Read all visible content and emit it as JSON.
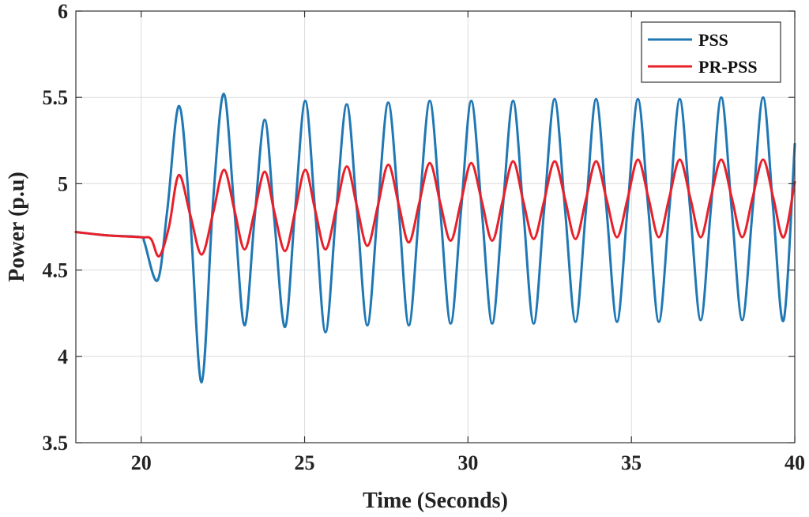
{
  "chart_data": {
    "type": "line",
    "xlabel": "Time (Seconds)",
    "ylabel": "Power (p.u)",
    "xlim": [
      18,
      40
    ],
    "ylim": [
      3.5,
      6
    ],
    "xticks": [
      20,
      25,
      30,
      35,
      40
    ],
    "yticks": [
      3.5,
      4,
      4.5,
      5,
      5.5,
      6
    ],
    "grid": true,
    "legend_position": "top-right",
    "series": [
      {
        "name": "PSS",
        "color": "#1f77b4",
        "x": [
          18.0,
          19.0,
          20.0,
          20.1,
          20.5,
          20.8,
          21.16,
          21.5,
          21.85,
          22.2,
          22.53,
          22.85,
          23.16,
          23.47,
          23.78,
          24.07,
          24.4,
          24.71,
          25.02,
          25.32,
          25.64,
          25.97,
          26.29,
          26.6,
          26.92,
          27.24,
          27.56,
          27.88,
          28.19,
          28.51,
          28.83,
          29.15,
          29.47,
          29.79,
          30.1,
          30.42,
          30.74,
          31.06,
          31.38,
          31.69,
          32.01,
          32.33,
          32.65,
          32.97,
          33.29,
          33.61,
          33.92,
          34.24,
          34.56,
          34.88,
          35.2,
          35.52,
          35.84,
          36.16,
          36.48,
          36.8,
          37.12,
          37.43,
          37.75,
          38.07,
          38.39,
          38.71,
          39.03,
          39.34,
          39.66,
          40.0
        ],
        "y": [
          4.72,
          4.7,
          4.69,
          4.66,
          4.44,
          4.85,
          5.45,
          4.8,
          3.85,
          4.9,
          5.52,
          4.85,
          4.18,
          4.8,
          5.37,
          4.8,
          4.17,
          4.85,
          5.48,
          4.85,
          4.14,
          4.85,
          5.46,
          4.85,
          4.18,
          4.85,
          5.47,
          4.85,
          4.18,
          4.85,
          5.48,
          4.85,
          4.19,
          4.85,
          5.48,
          4.85,
          4.19,
          4.85,
          5.48,
          4.85,
          4.19,
          4.85,
          5.49,
          4.85,
          4.2,
          4.85,
          5.49,
          4.85,
          4.2,
          4.85,
          5.49,
          4.85,
          4.2,
          4.85,
          5.49,
          4.85,
          4.21,
          4.85,
          5.5,
          4.85,
          4.21,
          4.85,
          5.5,
          4.85,
          4.21,
          5.23
        ]
      },
      {
        "name": "PR-PSS",
        "color": "#e8202a",
        "x": [
          18.0,
          19.0,
          20.0,
          20.3,
          20.55,
          20.85,
          21.15,
          21.5,
          21.85,
          22.2,
          22.53,
          22.85,
          23.16,
          23.47,
          23.78,
          24.07,
          24.4,
          24.71,
          25.02,
          25.32,
          25.64,
          25.97,
          26.29,
          26.6,
          26.92,
          27.24,
          27.56,
          27.88,
          28.19,
          28.51,
          28.83,
          29.15,
          29.47,
          29.79,
          30.1,
          30.42,
          30.74,
          31.06,
          31.38,
          31.69,
          32.01,
          32.33,
          32.65,
          32.97,
          33.29,
          33.61,
          33.92,
          34.24,
          34.56,
          34.88,
          35.2,
          35.52,
          35.84,
          36.16,
          36.48,
          36.8,
          37.12,
          37.43,
          37.75,
          38.07,
          38.39,
          38.71,
          39.03,
          39.34,
          39.66,
          40.0
        ],
        "y": [
          4.72,
          4.7,
          4.69,
          4.68,
          4.58,
          4.75,
          5.05,
          4.82,
          4.59,
          4.83,
          5.08,
          4.85,
          4.62,
          4.84,
          5.07,
          4.84,
          4.61,
          4.84,
          5.08,
          4.85,
          4.62,
          4.86,
          5.1,
          4.87,
          4.64,
          4.87,
          5.11,
          4.88,
          4.66,
          4.89,
          5.12,
          4.89,
          4.67,
          4.9,
          5.12,
          4.9,
          4.67,
          4.9,
          5.13,
          4.9,
          4.68,
          4.9,
          5.13,
          4.91,
          4.68,
          4.91,
          5.13,
          4.91,
          4.69,
          4.91,
          5.14,
          4.92,
          4.69,
          4.92,
          5.14,
          4.92,
          4.69,
          4.92,
          5.14,
          4.92,
          4.69,
          4.92,
          5.14,
          4.92,
          4.69,
          5.01
        ]
      }
    ]
  }
}
